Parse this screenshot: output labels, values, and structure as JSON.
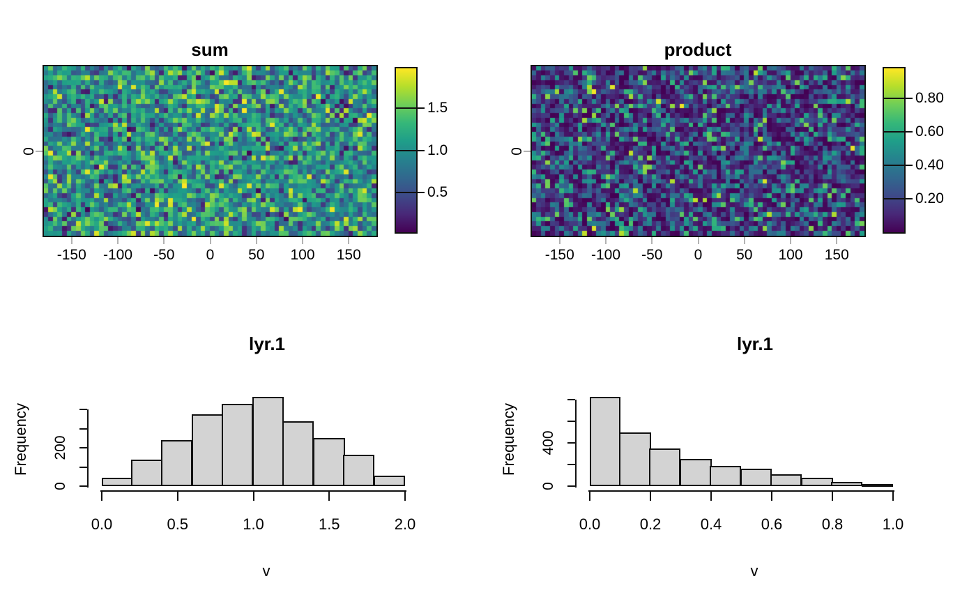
{
  "figure": {
    "background": "#ffffff",
    "text_color": "#000000",
    "bar_fill": "#d3d3d3",
    "bar_border": "#111111",
    "grey_tick_color": "#b3b3b3"
  },
  "colormap": {
    "name": "viridis",
    "stops": [
      "#440154",
      "#482878",
      "#3e4a89",
      "#31688e",
      "#26828e",
      "#1f9e89",
      "#35b779",
      "#6ece58",
      "#b5de2b",
      "#fde725"
    ]
  },
  "chart_data": [
    {
      "id": "raster-sum",
      "type": "heatmap",
      "title": "sum",
      "xlim": [
        -180,
        180
      ],
      "ylim": [
        -90,
        90
      ],
      "x_ticks": [
        -150,
        -100,
        -50,
        0,
        50,
        100,
        150
      ],
      "x_tick_labels": [
        "-150",
        "-100",
        "-50",
        "0",
        "50",
        "100",
        "150"
      ],
      "y_ticks": [
        0
      ],
      "y_tick_labels": [
        "0"
      ],
      "grid": {
        "cols": 72,
        "rows": 36
      },
      "value_range": [
        0.03,
        1.97
      ],
      "distribution": "sum_of_two_uniforms",
      "seed": 42,
      "legend": {
        "ticks": [
          0.5,
          1.0,
          1.5
        ],
        "tick_labels": [
          "0.5",
          "1.0",
          "1.5"
        ],
        "range": [
          0.03,
          1.97
        ],
        "position": "right"
      }
    },
    {
      "id": "raster-product",
      "type": "heatmap",
      "title": "product",
      "xlim": [
        -180,
        180
      ],
      "ylim": [
        -90,
        90
      ],
      "x_ticks": [
        -150,
        -100,
        -50,
        0,
        50,
        100,
        150
      ],
      "x_tick_labels": [
        "-150",
        "-100",
        "-50",
        "0",
        "50",
        "100",
        "150"
      ],
      "y_ticks": [
        0
      ],
      "y_tick_labels": [
        "0"
      ],
      "grid": {
        "cols": 72,
        "rows": 36
      },
      "value_range": [
        0.0,
        0.98
      ],
      "distribution": "product_of_two_uniforms",
      "seed": 1337,
      "legend": {
        "ticks": [
          0.2,
          0.4,
          0.6,
          0.8
        ],
        "tick_labels": [
          "0.20",
          "0.40",
          "0.60",
          "0.80"
        ],
        "range": [
          0.0,
          0.98
        ],
        "position": "right"
      }
    },
    {
      "id": "hist-sum",
      "type": "bar",
      "title": "lyr.1",
      "xlabel": "v",
      "ylabel": "Frequency",
      "breaks": [
        0.0,
        0.2,
        0.4,
        0.6,
        0.8,
        1.0,
        1.2,
        1.4,
        1.6,
        1.8,
        2.0
      ],
      "values": [
        45,
        140,
        240,
        375,
        430,
        465,
        340,
        250,
        165,
        55
      ],
      "xlim": [
        0.0,
        2.0
      ],
      "ylim": [
        0,
        400
      ],
      "x_ticks": [
        0.0,
        0.5,
        1.0,
        1.5,
        2.0
      ],
      "x_tick_labels": [
        "0.0",
        "0.5",
        "1.0",
        "1.5",
        "2.0"
      ],
      "y_ticks": [
        0,
        100,
        200,
        300,
        400
      ],
      "y_tick_labels": [
        "0",
        "",
        "200",
        "",
        ""
      ]
    },
    {
      "id": "hist-product",
      "type": "bar",
      "title": "lyr.1",
      "xlabel": "v",
      "ylabel": "Frequency",
      "breaks": [
        0.0,
        0.1,
        0.2,
        0.3,
        0.4,
        0.5,
        0.6,
        0.7,
        0.8,
        0.9,
        1.0
      ],
      "values": [
        825,
        495,
        350,
        250,
        190,
        160,
        110,
        75,
        37,
        17
      ],
      "xlim": [
        0.0,
        1.0
      ],
      "ylim": [
        0,
        800
      ],
      "x_ticks": [
        0.0,
        0.2,
        0.4,
        0.6,
        0.8,
        1.0
      ],
      "x_tick_labels": [
        "0.0",
        "0.2",
        "0.4",
        "0.6",
        "0.8",
        "1.0"
      ],
      "y_ticks": [
        0,
        200,
        400,
        600,
        800
      ],
      "y_tick_labels": [
        "0",
        "",
        "400",
        "",
        ""
      ]
    }
  ]
}
